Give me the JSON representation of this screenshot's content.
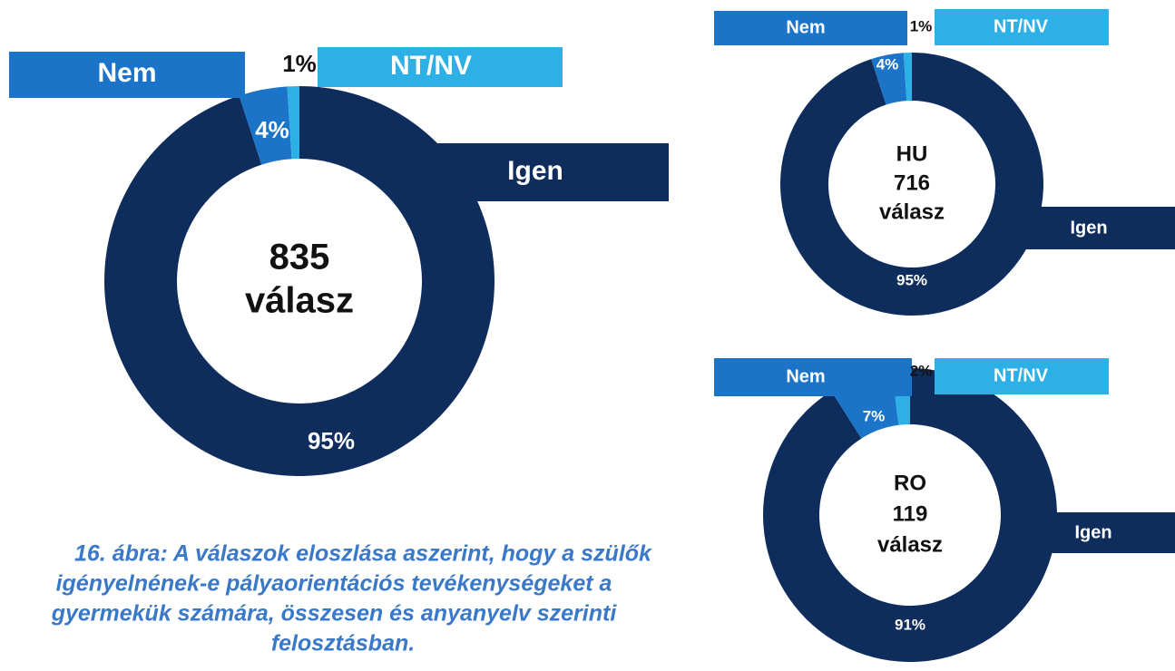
{
  "chart_data": [
    {
      "type": "donut",
      "center_label": [
        "835",
        "válasz"
      ],
      "categories": [
        "Igen",
        "Nem",
        "NT/NV"
      ],
      "values": [
        95,
        4,
        1
      ],
      "value_labels": [
        "95%",
        "4%",
        "1%"
      ],
      "colors": [
        "#0f2d5c",
        "#1b74c7",
        "#2cb0e6"
      ]
    },
    {
      "type": "donut",
      "center_label": [
        "HU",
        "716",
        "válasz"
      ],
      "categories": [
        "Igen",
        "Nem",
        "NT/NV"
      ],
      "values": [
        95,
        4,
        1
      ],
      "value_labels": [
        "95%",
        "4%",
        "1%"
      ],
      "colors": [
        "#0f2d5c",
        "#1b74c7",
        "#2cb0e6"
      ]
    },
    {
      "type": "donut",
      "center_label": [
        "RO",
        "119",
        "válasz"
      ],
      "categories": [
        "Igen",
        "Nem",
        "NT/NV"
      ],
      "values": [
        91,
        7,
        2
      ],
      "value_labels": [
        "91%",
        "7%",
        "2%"
      ],
      "colors": [
        "#0f2d5c",
        "#1b74c7",
        "#2cb0e6"
      ]
    }
  ],
  "caption": [
    "16. ábra: A válaszok eloszlása aszerint, hogy a szülők",
    "igényelnének-e pályaorientációs tevékenységeket a",
    "gyermekük számára, összesen és anyanyelv szerinti",
    "felosztásban."
  ]
}
